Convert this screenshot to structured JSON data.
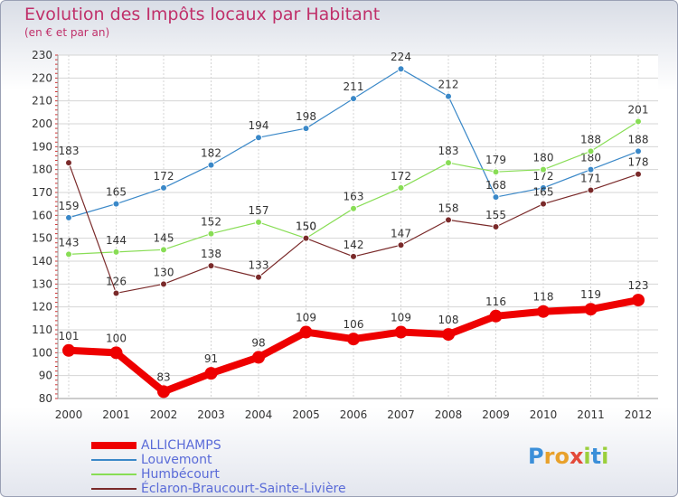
{
  "header": {
    "title": "Evolution des Impôts locaux par Habitant",
    "subtitle": "(en € et par an)"
  },
  "logo": {
    "letters": [
      "P",
      "r",
      "o",
      "x",
      "i",
      "t",
      "i"
    ],
    "colors": [
      "#3b8fd9",
      "#e8a12b",
      "#e8a12b",
      "#e34a3a",
      "#9bcf3c",
      "#3b8fd9",
      "#9bcf3c"
    ]
  },
  "chart_data": {
    "type": "line",
    "title": "Evolution des Impôts locaux par Habitant",
    "subtitle": "(en € et par an)",
    "xlabel": "",
    "ylabel": "",
    "x": [
      "2000",
      "2001",
      "2002",
      "2003",
      "2004",
      "2005",
      "2006",
      "2007",
      "2008",
      "2009",
      "2010",
      "2011",
      "2012"
    ],
    "ylim": [
      80,
      230
    ],
    "yticks": [
      80,
      90,
      100,
      110,
      120,
      130,
      140,
      150,
      160,
      170,
      180,
      190,
      200,
      210,
      220,
      230
    ],
    "grid": true,
    "legend_position": "bottom-left",
    "series": [
      {
        "name": "ALLICHAMPS",
        "color": "#ee0000",
        "highlight": true,
        "values": [
          101,
          100,
          83,
          91,
          98,
          109,
          106,
          109,
          108,
          116,
          118,
          119,
          123
        ]
      },
      {
        "name": "Louvemont",
        "color": "#3a88c8",
        "highlight": false,
        "values": [
          159,
          165,
          172,
          182,
          194,
          198,
          211,
          224,
          212,
          168,
          172,
          180,
          188
        ]
      },
      {
        "name": "Humbécourt",
        "color": "#88dd55",
        "highlight": false,
        "values": [
          143,
          144,
          145,
          152,
          157,
          150,
          163,
          172,
          183,
          179,
          180,
          188,
          201
        ]
      },
      {
        "name": "Éclaron-Braucourt-Sainte-Livière",
        "color": "#7a2a2a",
        "highlight": false,
        "values": [
          183,
          126,
          130,
          138,
          133,
          150,
          142,
          147,
          158,
          155,
          165,
          171,
          178
        ]
      }
    ]
  }
}
